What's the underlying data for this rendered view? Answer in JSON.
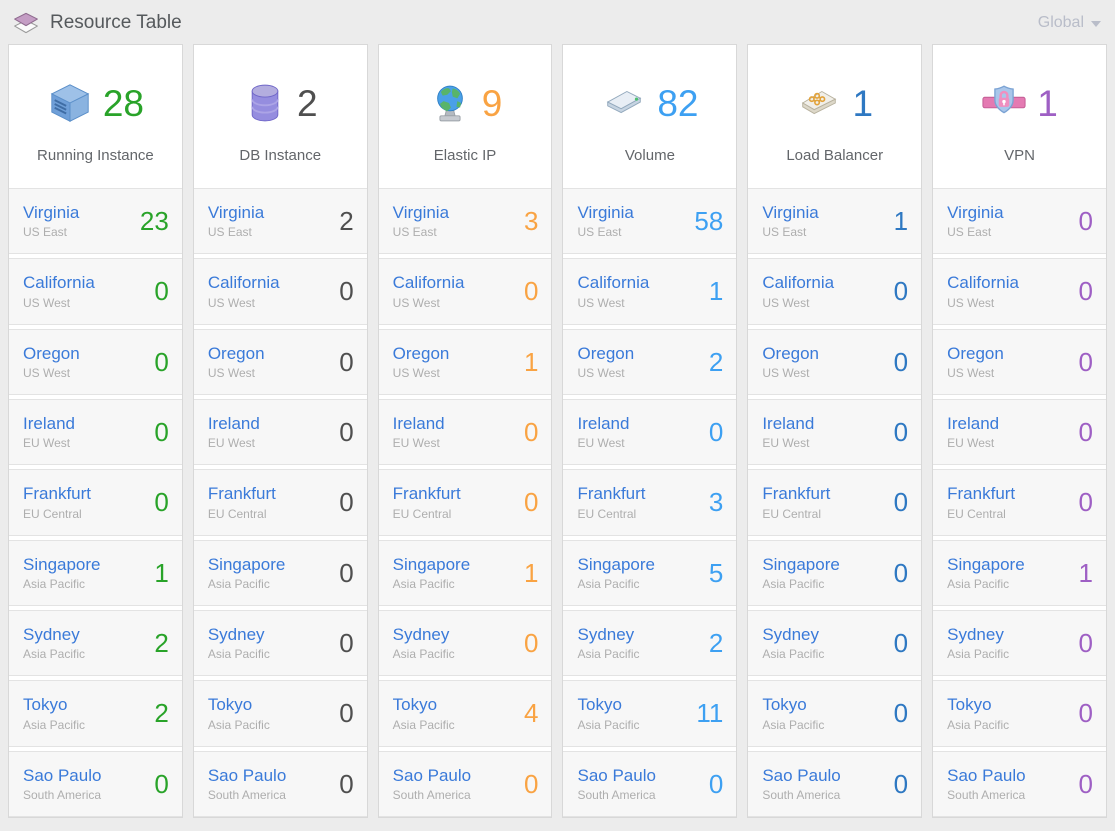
{
  "header": {
    "title": "Resource Table",
    "title_icon": "stack-icon",
    "region_scope": {
      "label": "Global",
      "icon": "chevron-down-icon"
    }
  },
  "regions": [
    {
      "name": "Virginia",
      "area": "US East"
    },
    {
      "name": "California",
      "area": "US West"
    },
    {
      "name": "Oregon",
      "area": "US West"
    },
    {
      "name": "Ireland",
      "area": "EU West"
    },
    {
      "name": "Frankfurt",
      "area": "EU Central"
    },
    {
      "name": "Singapore",
      "area": "Asia Pacific"
    },
    {
      "name": "Sydney",
      "area": "Asia Pacific"
    },
    {
      "name": "Tokyo",
      "area": "Asia Pacific"
    },
    {
      "name": "Sao Paulo",
      "area": "South America"
    }
  ],
  "columns": [
    {
      "id": "running-instance",
      "label": "Running Instance",
      "icon": "instance-cube-icon",
      "color": "#29a329",
      "total": "28",
      "values": [
        "23",
        "0",
        "0",
        "0",
        "0",
        "1",
        "2",
        "2",
        "0"
      ]
    },
    {
      "id": "db-instance",
      "label": "DB Instance",
      "icon": "database-icon",
      "color": "#4f4f4f",
      "total": "2",
      "values": [
        "2",
        "0",
        "0",
        "0",
        "0",
        "0",
        "0",
        "0",
        "0"
      ]
    },
    {
      "id": "elastic-ip",
      "label": "Elastic IP",
      "icon": "globe-icon",
      "color": "#f9a343",
      "total": "9",
      "values": [
        "3",
        "0",
        "1",
        "0",
        "0",
        "1",
        "0",
        "4",
        "0"
      ]
    },
    {
      "id": "volume",
      "label": "Volume",
      "icon": "disk-volume-icon",
      "color": "#3da0f2",
      "total": "82",
      "values": [
        "58",
        "1",
        "2",
        "0",
        "3",
        "5",
        "2",
        "11",
        "0"
      ]
    },
    {
      "id": "load-balancer",
      "label": "Load Balancer",
      "icon": "load-balancer-icon",
      "color": "#2e78c2",
      "total": "1",
      "values": [
        "1",
        "0",
        "0",
        "0",
        "0",
        "0",
        "0",
        "0",
        "0"
      ]
    },
    {
      "id": "vpn",
      "label": "VPN",
      "icon": "vpn-shield-icon",
      "color": "#9e5fc4",
      "total": "1",
      "values": [
        "0",
        "0",
        "0",
        "0",
        "0",
        "1",
        "0",
        "0",
        "0"
      ]
    }
  ],
  "ui_colors": {
    "region_name": "#3a7ad9",
    "region_area": "#aeaeae",
    "page_bg": "#ececec",
    "card_bg": "#ffffff",
    "row_bg": "#f7f7f7",
    "border": "#d8d8d8",
    "header_text": "#55595c",
    "global_text": "#b9bdc9"
  }
}
